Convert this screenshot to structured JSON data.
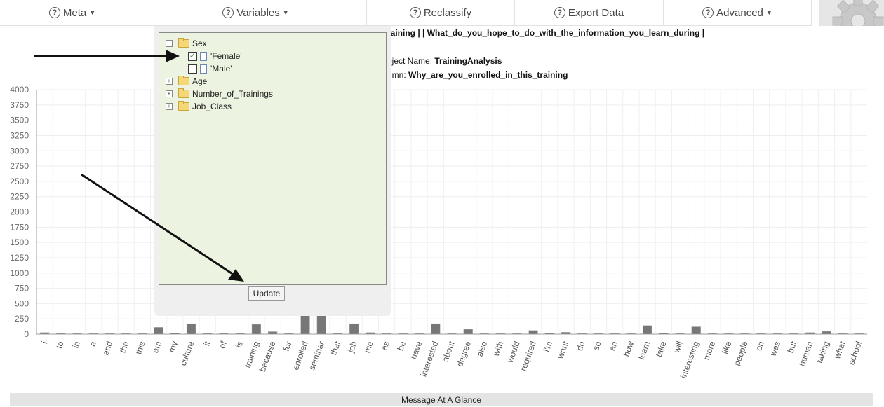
{
  "toolbar": {
    "meta": "Meta",
    "variables": "Variables",
    "reclassify": "Reclassify",
    "export": "Export Data",
    "advanced": "Advanced"
  },
  "info": {
    "columns_line": "raining | | What_do_you_hope_to_do_with_the_information_you_learn_during |",
    "project_label": "oject Name:",
    "project_value": "TrainingAnalysis",
    "column_label": "umn:",
    "column_value": "Why_are_you_enrolled_in_this_training"
  },
  "variables_tree": {
    "sex": "Sex",
    "female": "'Female'",
    "male": "'Male'",
    "female_checked": true,
    "male_checked": false,
    "age": "Age",
    "trainings": "Number_of_Trainings",
    "job_class": "Job_Class",
    "update_label": "Update"
  },
  "chart_data": {
    "type": "bar",
    "y_ticks": [
      "0",
      "250",
      "500",
      "750",
      "1000",
      "1250",
      "1500",
      "1750",
      "2000",
      "2250",
      "2500",
      "2750",
      "3000",
      "3250",
      "3500",
      "3750",
      "4000"
    ],
    "ylim": [
      0,
      4000
    ],
    "grid": true,
    "categories": [
      "i",
      "to",
      "in",
      "a",
      "and",
      "the",
      "this",
      "am",
      "my",
      "culture",
      "it",
      "of",
      "is",
      "training",
      "because",
      "for",
      "enrolled",
      "seminar",
      "that",
      "job",
      "me",
      "as",
      "be",
      "have",
      "interested",
      "about",
      "degree",
      "also",
      "with",
      "would",
      "required",
      "i'm",
      "want",
      "do",
      "so",
      "an",
      "how",
      "learn",
      "take",
      "will",
      "interesting",
      "more",
      "like",
      "people",
      "on",
      "was",
      "but",
      "human",
      "taking",
      "what",
      "school"
    ],
    "values": [
      25,
      12,
      10,
      10,
      10,
      10,
      10,
      110,
      20,
      170,
      12,
      12,
      12,
      160,
      40,
      12,
      800,
      1200,
      12,
      170,
      25,
      10,
      10,
      10,
      170,
      10,
      80,
      10,
      10,
      10,
      60,
      20,
      30,
      10,
      10,
      10,
      10,
      140,
      20,
      10,
      120,
      10,
      10,
      10,
      10,
      10,
      10,
      25,
      45,
      10,
      10
    ]
  },
  "footer": {
    "label": "Message At A Glance"
  },
  "colors": {
    "bar": "#777777",
    "tree_bg": "#ecf3e0",
    "panel_bg": "#efefef"
  }
}
